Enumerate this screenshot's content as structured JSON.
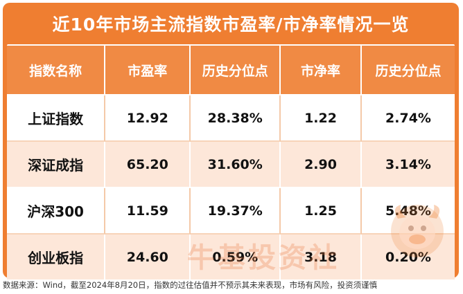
{
  "title": "近10年市场主流指数市盈率/市净率情况一览",
  "table": {
    "headers": [
      "指数名称",
      "市盈率",
      "历史分位点",
      "市净率",
      "历史分位点"
    ],
    "rows": [
      {
        "name": "上证指数",
        "pe": "12.92",
        "pe_pct": "28.38%",
        "pb": "1.22",
        "pb_pct": "2.74%"
      },
      {
        "name": "深证成指",
        "pe": "65.20",
        "pe_pct": "31.60%",
        "pb": "2.90",
        "pb_pct": "3.14%"
      },
      {
        "name": "沪深300",
        "pe": "11.59",
        "pe_pct": "19.37%",
        "pb": "1.25",
        "pb_pct": "5.48%"
      },
      {
        "name": "创业板指",
        "pe": "24.60",
        "pe_pct": "0.59%",
        "pb": "3.18",
        "pb_pct": "0.20%"
      }
    ]
  },
  "watermark": "牛基投资社",
  "footer": "数据来源：Wind，截至2024年8月20日，指数的过往估值并不预示其未来表现，市场有风险，投资须谨慎",
  "colors": {
    "accent": "#ef7e31",
    "header": "#f08a44",
    "row_alt": "#fde7d9"
  }
}
